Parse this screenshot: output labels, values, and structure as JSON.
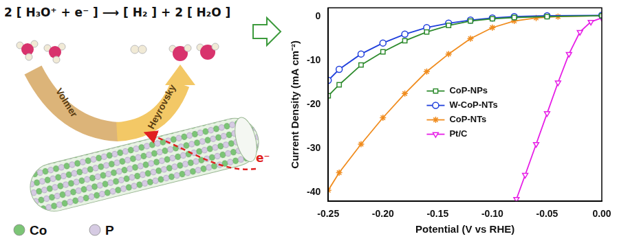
{
  "diagram": {
    "equation": "2 [ H₃O⁺ + e⁻ ]  ⟶  [ H₂ ] + 2 [ H₂O ]",
    "steps": [
      "Volmer",
      "Heyrovsky"
    ],
    "electron": "e⁻",
    "legend": [
      {
        "label": "Co",
        "color": "#7cc576"
      },
      {
        "label": "P",
        "color": "#d6cbe3"
      }
    ]
  },
  "chart_data": {
    "type": "line",
    "x_label": "Potential (V vs RHE)",
    "y_label": "Current Density (mA cm⁻²)",
    "xlim": [
      -0.25,
      0
    ],
    "xticks": [
      -0.25,
      {
        "value": -0.2,
        "label": "-0.20"
      },
      -0.15,
      {
        "value": -0.1,
        "label": "-0.10"
      },
      -0.05,
      {
        "value": 0,
        "label": "0.00"
      }
    ],
    "ylim": [
      -42,
      2
    ],
    "yticks": [
      0,
      -10,
      -20,
      -30,
      -40
    ],
    "grid": false,
    "legend": "lower center",
    "series": [
      {
        "name": "CoP-NPs",
        "color": "#2e8b2e",
        "marker": "square",
        "line_style": "solid",
        "x": [
          -0.25,
          -0.24,
          -0.22,
          -0.2,
          -0.18,
          -0.16,
          -0.14,
          -0.12,
          -0.1,
          -0.08,
          -0.05,
          0
        ],
        "values": [
          -18,
          -15.5,
          -11,
          -8,
          -5.5,
          -3.5,
          -2,
          -1,
          -0.5,
          -0.2,
          0,
          0.2
        ]
      },
      {
        "name": "W-CoP-NTs",
        "color": "#1f3fdc",
        "marker": "circle",
        "line_style": "solid",
        "x": [
          -0.25,
          -0.24,
          -0.22,
          -0.2,
          -0.18,
          -0.16,
          -0.14,
          -0.12,
          -0.1,
          -0.08,
          -0.05,
          0
        ],
        "values": [
          -14.5,
          -12,
          -8.5,
          -6,
          -4,
          -2.5,
          -1.5,
          -0.8,
          -0.3,
          0,
          0.2,
          0.3
        ]
      },
      {
        "name": "CoP-NTs",
        "color": "#f08c1e",
        "marker": "star",
        "line_style": "solid",
        "x": [
          -0.25,
          -0.24,
          -0.22,
          -0.2,
          -0.18,
          -0.16,
          -0.14,
          -0.12,
          -0.1,
          -0.08,
          -0.06,
          -0.04,
          0
        ],
        "values": [
          -39.5,
          -35.5,
          -29,
          -23,
          -17.5,
          -12.5,
          -8.5,
          -5,
          -2.5,
          -1,
          -0.3,
          0,
          0.2
        ]
      },
      {
        "name": "Pt/C",
        "color": "#e61ee6",
        "marker": "triangle_down",
        "line_style": "solid",
        "x": [
          -0.078,
          -0.07,
          -0.06,
          -0.05,
          -0.04,
          -0.03,
          -0.02,
          -0.01,
          0
        ],
        "values": [
          -41.5,
          -36,
          -29,
          -22,
          -15,
          -8.5,
          -3.5,
          -1.2,
          -0.3
        ]
      }
    ]
  }
}
